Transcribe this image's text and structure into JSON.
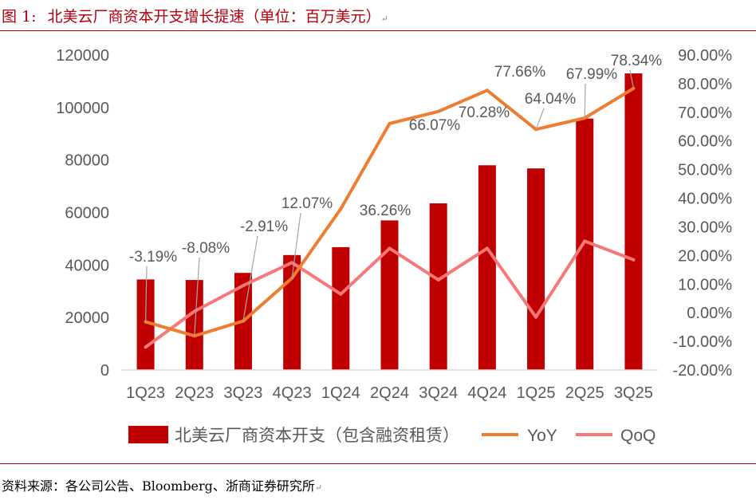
{
  "figure": {
    "label": "图 1:",
    "title": "北美云厂商资本开支增长提速（单位：百万美元）",
    "source": "资料来源：各公司公告、Bloomberg、浙商证券研究所",
    "para_mark": "↵"
  },
  "chart_data": {
    "type": "bar",
    "title": "北美云厂商资本开支增长提速（单位：百万美元）",
    "categories": [
      "1Q23",
      "2Q23",
      "3Q23",
      "4Q23",
      "1Q24",
      "2Q24",
      "3Q24",
      "4Q24",
      "1Q25",
      "2Q25",
      "3Q25"
    ],
    "series": [
      {
        "name": "北美云厂商资本开支（包含融资租赁）",
        "type": "bar",
        "axis": "left",
        "color": "#c00000",
        "values": [
          34500,
          34300,
          37000,
          43800,
          46800,
          57000,
          63500,
          78000,
          76800,
          95800,
          113000
        ]
      },
      {
        "name": "YoY",
        "type": "line",
        "axis": "right",
        "color": "#ed7d31",
        "values": [
          -3.19,
          -8.08,
          -2.91,
          12.07,
          36.26,
          66.07,
          70.28,
          77.66,
          64.04,
          67.99,
          78.34
        ]
      },
      {
        "name": "QoQ",
        "type": "line",
        "axis": "right",
        "color": "#f8787a",
        "values": [
          -12.0,
          0.5,
          9.5,
          17.5,
          6.5,
          22.5,
          11.5,
          22.5,
          -1.5,
          25.0,
          18.5
        ]
      }
    ],
    "yoy_labels": [
      "-3.19%",
      "-8.08%",
      "-2.91%",
      "12.07%",
      "36.26%",
      "66.07%",
      "70.28%",
      "77.66%",
      "64.04%",
      "67.99%",
      "78.34%"
    ],
    "left_axis": {
      "ylim": [
        0,
        120000
      ],
      "ticks": [
        0,
        20000,
        40000,
        60000,
        80000,
        100000,
        120000
      ],
      "tick_labels": [
        "0",
        "20000",
        "40000",
        "60000",
        "80000",
        "100000",
        "120000"
      ]
    },
    "right_axis": {
      "ylim": [
        -20,
        90
      ],
      "ticks": [
        -20,
        -10,
        0,
        10,
        20,
        30,
        40,
        50,
        60,
        70,
        80,
        90
      ],
      "tick_labels": [
        "-20.00%",
        "-10.00%",
        "0.00%",
        "10.00%",
        "20.00%",
        "30.00%",
        "40.00%",
        "50.00%",
        "60.00%",
        "70.00%",
        "80.00%",
        "90.00%"
      ]
    },
    "legend": {
      "position": "bottom",
      "items": [
        "北美云厂商资本开支（包含融资租赁）",
        "YoY",
        "QoQ"
      ]
    },
    "grid": false
  }
}
